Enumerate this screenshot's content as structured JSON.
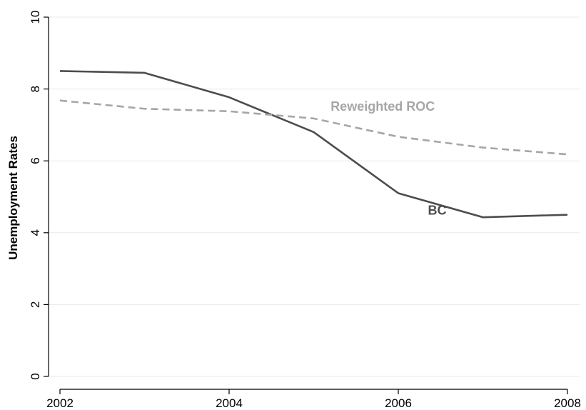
{
  "chart_data": {
    "type": "line",
    "title": "",
    "xlabel": "",
    "ylabel": "Unemployment Rates",
    "xlim": [
      2002,
      2008
    ],
    "ylim": [
      0,
      10
    ],
    "x_ticks": [
      2002,
      2004,
      2006,
      2008
    ],
    "y_ticks": [
      0,
      2,
      4,
      6,
      8,
      10
    ],
    "x_tick_labels": [
      "2002",
      "2004",
      "2006",
      "2008"
    ],
    "y_tick_labels": [
      "0",
      "2",
      "4",
      "6",
      "8",
      "10"
    ],
    "grid": "horizontal",
    "legend": "none",
    "x": [
      2002,
      2003,
      2004,
      2005,
      2006,
      2007,
      2008
    ],
    "series": [
      {
        "name": "BC",
        "values": [
          8.5,
          8.45,
          7.77,
          6.8,
          5.1,
          4.43,
          4.5
        ],
        "color": "#4d4d4d",
        "style": "solid",
        "label_at": {
          "x": 2006.35,
          "y": 4.5
        }
      },
      {
        "name": "Reweighted ROC",
        "values": [
          7.68,
          7.45,
          7.38,
          7.18,
          6.67,
          6.37,
          6.18
        ],
        "color": "#a6a6a6",
        "style": "dashed",
        "label_at": {
          "x": 2005.2,
          "y": 7.4
        }
      }
    ]
  }
}
